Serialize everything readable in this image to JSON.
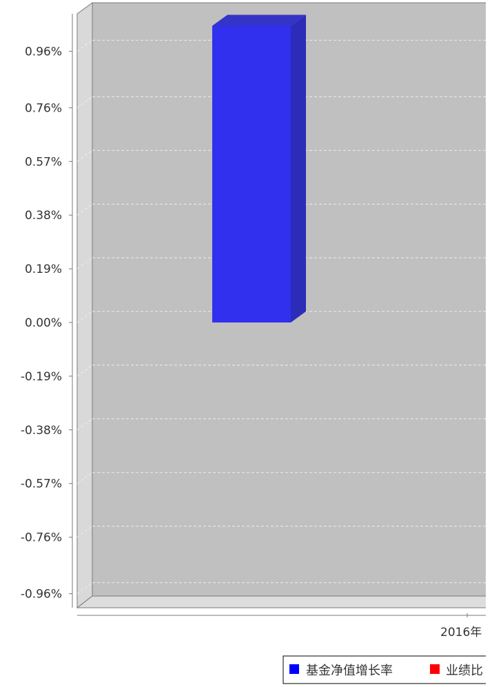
{
  "chart_data": {
    "type": "bar",
    "categories": [
      "2016年"
    ],
    "series": [
      {
        "name": "基金净值增长率",
        "values": [
          1.05
        ]
      },
      {
        "name": "业绩比较基准收益率",
        "values": [
          null
        ]
      }
    ],
    "y_tick_labels": [
      "0.96%",
      "0.76%",
      "0.57%",
      "0.38%",
      "0.19%",
      "0.00%",
      "-0.19%",
      "-0.38%",
      "-0.57%",
      "-0.76%",
      "-0.96%"
    ],
    "y_tick_values": [
      0.96,
      0.76,
      0.57,
      0.38,
      0.19,
      0.0,
      -0.19,
      -0.38,
      -0.57,
      -0.76,
      -0.96
    ],
    "ylim": [
      -1.0,
      1.1
    ],
    "grid": true,
    "legend_position": "bottom",
    "x_tick_visible_text": "2016年",
    "legend_visible": [
      "基金净值增长率",
      "业绩比"
    ]
  },
  "colors": {
    "plot_background": "#c0c0c0",
    "wall_side": "#d9d9d9",
    "floor": "#dddddd",
    "series_1": "#0000ff",
    "series_2": "#ff0000",
    "bar_front": "#3030ee",
    "bar_side": "#2c2cb8",
    "bar_top": "#3434c8",
    "grid": "#eeeeee",
    "axis": "#777777",
    "text": "#333333"
  }
}
